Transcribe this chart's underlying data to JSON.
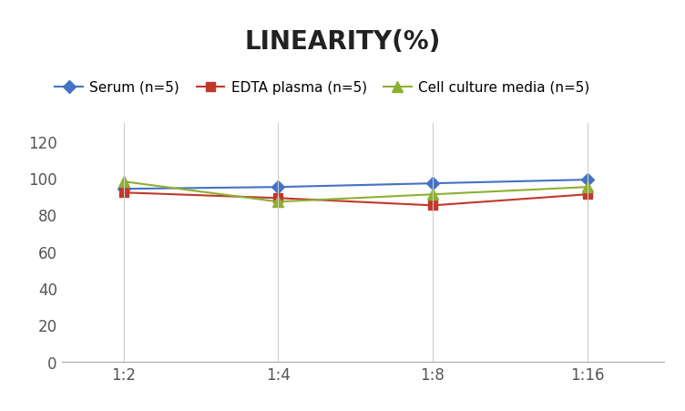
{
  "title": "LINEARITY(%)",
  "x_labels": [
    "1:2",
    "1:4",
    "1:8",
    "1:16"
  ],
  "x_positions": [
    0,
    1,
    2,
    3
  ],
  "series": [
    {
      "name": "Serum (n=5)",
      "color": "#4472C4",
      "marker": "D",
      "markersize": 7,
      "values": [
        94,
        95,
        97,
        99
      ]
    },
    {
      "name": "EDTA plasma (n=5)",
      "color": "#C0392B",
      "marker": "s",
      "markersize": 7,
      "values": [
        92,
        89,
        85,
        91
      ]
    },
    {
      "name": "Cell culture media (n=5)",
      "color": "#8DB031",
      "marker": "^",
      "markersize": 9,
      "values": [
        98,
        87,
        91,
        95
      ]
    }
  ],
  "ylim": [
    0,
    130
  ],
  "yticks": [
    0,
    20,
    40,
    60,
    80,
    100,
    120
  ],
  "background_color": "#ffffff",
  "grid_color": "#cccccc",
  "title_fontsize": 20,
  "legend_fontsize": 11,
  "tick_fontsize": 12
}
